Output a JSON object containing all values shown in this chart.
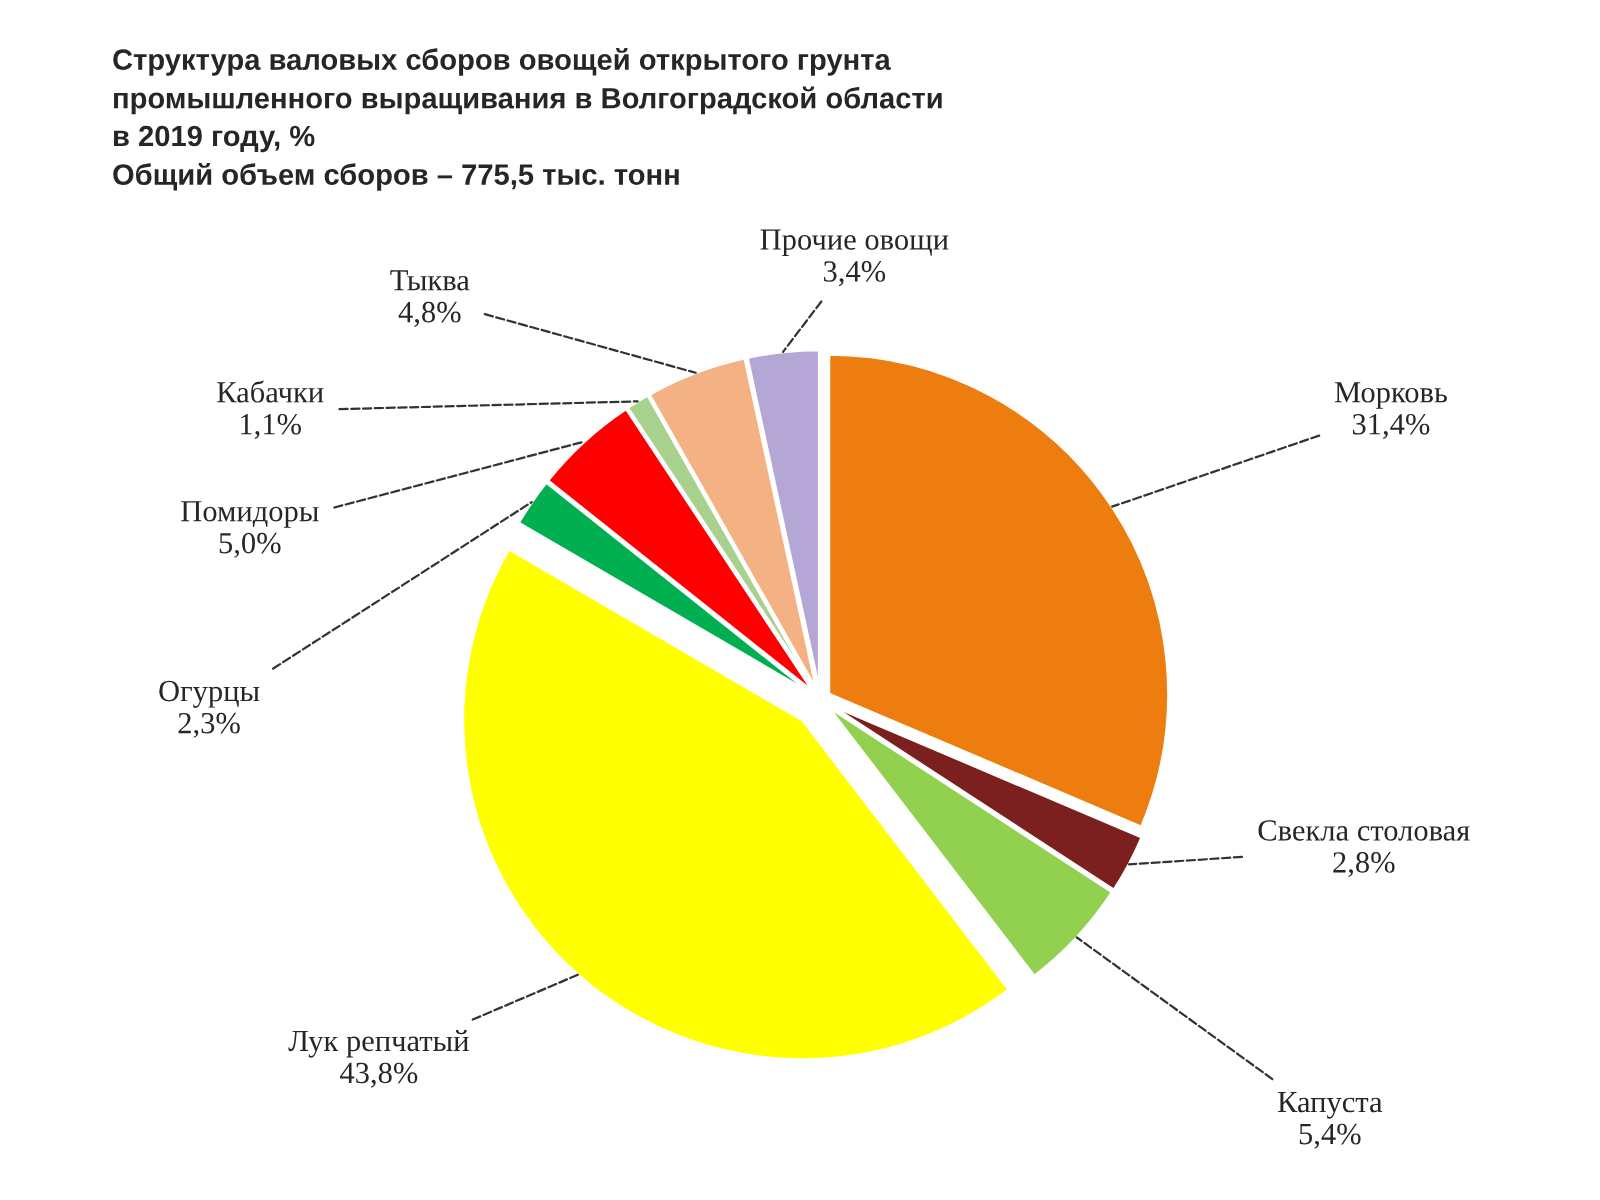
{
  "chart_data": {
    "type": "pie",
    "title": "Структура валовых сборов овощей открытого грунта\nпромышленного выращивания в Волгоградской области\nв 2019 году, %\nОбщий объем сборов – 775,5 тыс. тонн",
    "categories": [
      "Морковь",
      "Свекла столовая",
      "Капуста",
      "Лук репчатый",
      "Огурцы",
      "Помидоры",
      "Кабачки",
      "Тыква",
      "Прочие овощи"
    ],
    "values": [
      31.4,
      2.8,
      5.4,
      43.8,
      2.3,
      5.0,
      1.1,
      4.8,
      3.4
    ],
    "value_labels": [
      "31,4%",
      "2,8%",
      "5,4%",
      "43,8%",
      "2,3%",
      "5,0%",
      "1,1%",
      "4,8%",
      "3,4%"
    ],
    "colors": [
      "#ed7d0e",
      "#7b1f1f",
      "#92d050",
      "#ffff00",
      "#00b050",
      "#ff0000",
      "#a9d18e",
      "#f4b183",
      "#b4a7d6"
    ],
    "legend": false
  }
}
